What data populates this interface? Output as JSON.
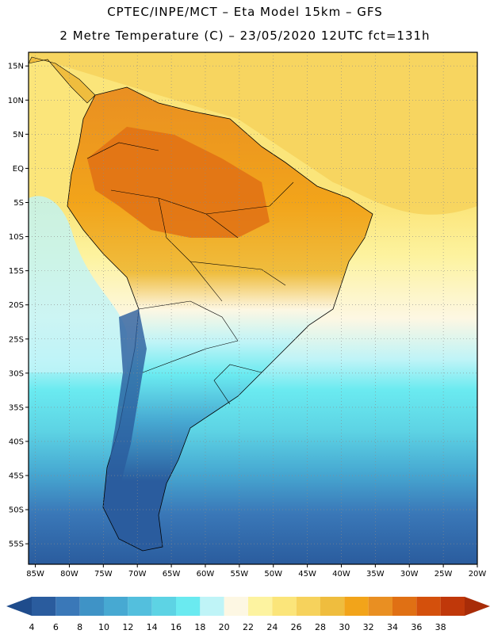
{
  "titles": {
    "line1": "CPTEC/INPE/MCT –  Eta Model 15km – GFS",
    "line2": "2 Metre Temperature (C) – 23/05/2020 12UTC fct=131h"
  },
  "map": {
    "lat_labels": [
      "15N",
      "10N",
      "5N",
      "EQ",
      "5S",
      "10S",
      "15S",
      "20S",
      "25S",
      "30S",
      "35S",
      "40S",
      "45S",
      "50S",
      "55S"
    ],
    "lat_values": [
      15,
      10,
      5,
      0,
      -5,
      -10,
      -15,
      -20,
      -25,
      -30,
      -35,
      -40,
      -45,
      -50,
      -55
    ],
    "lon_labels": [
      "85W",
      "80W",
      "75W",
      "70W",
      "65W",
      "60W",
      "55W",
      "50W",
      "45W",
      "40W",
      "35W",
      "30W",
      "25W",
      "20W"
    ],
    "lon_values": [
      -85,
      -80,
      -75,
      -70,
      -65,
      -60,
      -55,
      -50,
      -45,
      -40,
      -35,
      -30,
      -25,
      -20
    ],
    "extent": {
      "lon_min": -86,
      "lon_max": -20,
      "lat_min": -58,
      "lat_max": 17
    }
  },
  "colorbar": {
    "labels": [
      "4",
      "6",
      "8",
      "10",
      "12",
      "14",
      "16",
      "18",
      "20",
      "22",
      "24",
      "26",
      "28",
      "30",
      "32",
      "34",
      "36",
      "38"
    ],
    "colors": [
      "#2a5c9e",
      "#3a78b8",
      "#3f93c6",
      "#47a9d2",
      "#53bfdd",
      "#5dd3e4",
      "#6aeaf0",
      "#bff4f7",
      "#fdf7e3",
      "#fdf3a0",
      "#fbe57a",
      "#f6d25c",
      "#efbd3e",
      "#f2a41a",
      "#e98f22",
      "#e07014",
      "#d4500c",
      "#c0380a"
    ]
  }
}
